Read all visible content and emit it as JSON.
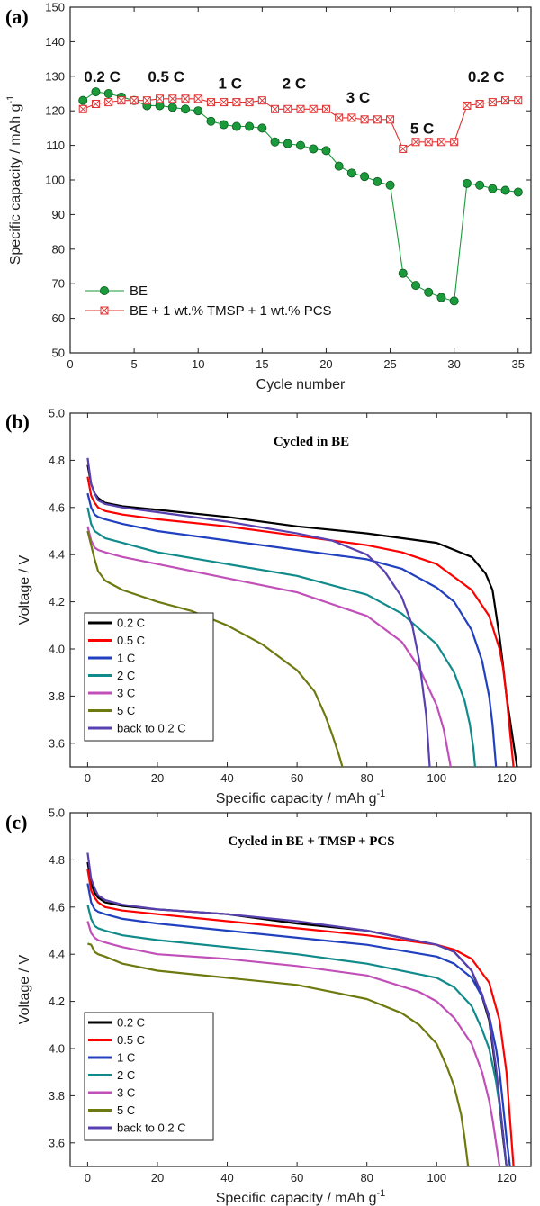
{
  "chart_data": [
    {
      "panel": "(a)",
      "type": "line",
      "xlabel": "Cycle number",
      "ylabel": "Specific capacity / mAh g",
      "ylabel_sup": "-1",
      "xlim": [
        0,
        36
      ],
      "ylim": [
        50,
        150
      ],
      "xticks": [
        0,
        5,
        10,
        15,
        20,
        25,
        30,
        35
      ],
      "yticks": [
        50,
        60,
        70,
        80,
        90,
        100,
        110,
        120,
        130,
        140,
        150
      ],
      "rate_labels": [
        {
          "text": "0.2 C",
          "x": 2.5,
          "y": 130
        },
        {
          "text": "0.5 C",
          "x": 7.5,
          "y": 130
        },
        {
          "text": "1 C",
          "x": 12.5,
          "y": 128
        },
        {
          "text": "2 C",
          "x": 17.5,
          "y": 128
        },
        {
          "text": "3 C",
          "x": 22.5,
          "y": 124
        },
        {
          "text": "5 C",
          "x": 27.5,
          "y": 115
        },
        {
          "text": "0.2 C",
          "x": 32.5,
          "y": 130
        }
      ],
      "series": [
        {
          "name": "BE",
          "color": "#1a9a3a",
          "marker": "circle",
          "x": [
            1,
            2,
            3,
            4,
            5,
            6,
            7,
            8,
            9,
            10,
            11,
            12,
            13,
            14,
            15,
            16,
            17,
            18,
            19,
            20,
            21,
            22,
            23,
            24,
            25,
            26,
            27,
            28,
            29,
            30,
            31,
            32,
            33,
            34,
            35
          ],
          "values": [
            123,
            125.5,
            125,
            124,
            123,
            121.5,
            121.5,
            121,
            120.5,
            120,
            117,
            116,
            115.5,
            115.5,
            115,
            111,
            110.5,
            110,
            109,
            108.5,
            104,
            102,
            101,
            99.5,
            98.5,
            73,
            69.5,
            67.5,
            66,
            65,
            99,
            98.5,
            97.5,
            97,
            96.5
          ]
        },
        {
          "name": "BE + 1 wt.% TMSP  +  1 wt.% PCS",
          "color": "#e03030",
          "marker": "square-x",
          "x": [
            1,
            2,
            3,
            4,
            5,
            6,
            7,
            8,
            9,
            10,
            11,
            12,
            13,
            14,
            15,
            16,
            17,
            18,
            19,
            20,
            21,
            22,
            23,
            24,
            25,
            26,
            27,
            28,
            29,
            30,
            31,
            32,
            33,
            34,
            35
          ],
          "values": [
            120.5,
            122,
            122.5,
            123,
            123,
            123,
            123.5,
            123.5,
            123.5,
            123.5,
            122.5,
            122.5,
            122.5,
            122.5,
            123,
            120.5,
            120.5,
            120.5,
            120.5,
            120.5,
            118,
            118,
            117.5,
            117.5,
            117.5,
            109,
            111,
            111,
            111,
            111,
            121.5,
            122,
            122.5,
            123,
            123
          ]
        }
      ]
    },
    {
      "panel": "(b)",
      "type": "line",
      "title": "Cycled in BE",
      "xlabel": "Specific capacity / mAh g",
      "xlabel_sup": "-1",
      "ylabel": "Voltage / V",
      "xlim": [
        -5,
        127
      ],
      "ylim": [
        3.5,
        5.0
      ],
      "xticks": [
        0,
        20,
        40,
        60,
        80,
        100,
        120
      ],
      "yticks": [
        3.6,
        3.8,
        4.0,
        4.2,
        4.4,
        4.6,
        4.8,
        5.0
      ],
      "series": [
        {
          "name": "0.2 C",
          "color": "#000000",
          "x": [
            0,
            1,
            2,
            3,
            5,
            10,
            20,
            40,
            60,
            80,
            100,
            110,
            114,
            116,
            117,
            118,
            119,
            120,
            122,
            123
          ],
          "values": [
            4.78,
            4.7,
            4.66,
            4.64,
            4.62,
            4.605,
            4.59,
            4.56,
            4.52,
            4.49,
            4.45,
            4.39,
            4.32,
            4.25,
            4.15,
            4.05,
            3.93,
            3.8,
            3.6,
            3.5
          ]
        },
        {
          "name": "0.5 C",
          "color": "#ff0000",
          "x": [
            0,
            1,
            2,
            3,
            5,
            10,
            20,
            40,
            60,
            80,
            90,
            100,
            110,
            115,
            118,
            119,
            120,
            121,
            122
          ],
          "values": [
            4.73,
            4.65,
            4.62,
            4.6,
            4.585,
            4.57,
            4.55,
            4.52,
            4.48,
            4.44,
            4.41,
            4.36,
            4.25,
            4.14,
            4.0,
            3.92,
            3.8,
            3.65,
            3.5
          ]
        },
        {
          "name": "1 C",
          "color": "#2040c0",
          "x": [
            0,
            1,
            2,
            3,
            5,
            10,
            20,
            40,
            60,
            80,
            90,
            100,
            105,
            110,
            113,
            115,
            116,
            117
          ],
          "values": [
            4.66,
            4.6,
            4.57,
            4.56,
            4.55,
            4.53,
            4.5,
            4.46,
            4.42,
            4.38,
            4.34,
            4.26,
            4.2,
            4.08,
            3.95,
            3.8,
            3.68,
            3.5
          ]
        },
        {
          "name": "2 C",
          "color": "#108a8a",
          "x": [
            0,
            1,
            2,
            3,
            5,
            10,
            20,
            40,
            60,
            80,
            90,
            100,
            105,
            108,
            109.5,
            110.5,
            111
          ],
          "values": [
            4.6,
            4.53,
            4.5,
            4.49,
            4.47,
            4.45,
            4.41,
            4.36,
            4.31,
            4.23,
            4.15,
            4.02,
            3.9,
            3.78,
            3.68,
            3.58,
            3.5
          ]
        },
        {
          "name": "3 C",
          "color": "#c050b8",
          "x": [
            0,
            1,
            2,
            3,
            5,
            10,
            20,
            40,
            60,
            80,
            90,
            95,
            100,
            102,
            103,
            104
          ],
          "values": [
            4.52,
            4.46,
            4.43,
            4.42,
            4.41,
            4.39,
            4.36,
            4.3,
            4.24,
            4.14,
            4.03,
            3.92,
            3.76,
            3.66,
            3.58,
            3.5
          ]
        },
        {
          "name": "5 C",
          "color": "#6e7a10",
          "x": [
            0,
            1,
            2,
            3,
            5,
            10,
            20,
            30,
            40,
            50,
            60,
            65,
            68,
            70,
            72,
            73
          ],
          "values": [
            4.5,
            4.44,
            4.38,
            4.33,
            4.29,
            4.25,
            4.2,
            4.16,
            4.1,
            4.02,
            3.91,
            3.82,
            3.72,
            3.64,
            3.55,
            3.5
          ]
        },
        {
          "name": "back to 0.2 C",
          "color": "#5840b0",
          "x": [
            0,
            1,
            2,
            3,
            5,
            10,
            20,
            40,
            60,
            70,
            80,
            85,
            90,
            93,
            95,
            97,
            98
          ],
          "values": [
            4.81,
            4.7,
            4.66,
            4.63,
            4.615,
            4.6,
            4.58,
            4.54,
            4.49,
            4.46,
            4.4,
            4.33,
            4.22,
            4.1,
            3.95,
            3.72,
            3.5
          ]
        }
      ]
    },
    {
      "panel": "(c)",
      "type": "line",
      "title": "Cycled in BE + TMSP + PCS",
      "xlabel": "Specific capacity / mAh g",
      "xlabel_sup": "-1",
      "ylabel": "Voltage / V",
      "xlim": [
        -5,
        127
      ],
      "ylim": [
        3.5,
        5.0
      ],
      "xticks": [
        0,
        20,
        40,
        60,
        80,
        100,
        120
      ],
      "yticks": [
        3.6,
        3.8,
        4.0,
        4.2,
        4.4,
        4.6,
        4.8,
        5.0
      ],
      "series": [
        {
          "name": "0.2 C",
          "color": "#000000",
          "x": [
            0,
            1,
            2,
            3,
            5,
            10,
            20,
            40,
            60,
            80,
            100,
            105,
            110,
            113,
            115,
            117,
            118,
            119,
            120
          ],
          "values": [
            4.79,
            4.7,
            4.66,
            4.64,
            4.62,
            4.605,
            4.59,
            4.57,
            4.53,
            4.5,
            4.44,
            4.41,
            4.33,
            4.22,
            4.12,
            3.9,
            3.76,
            3.62,
            3.5
          ]
        },
        {
          "name": "0.5 C",
          "color": "#ff0000",
          "x": [
            0,
            1,
            2,
            3,
            5,
            10,
            20,
            40,
            60,
            80,
            100,
            105,
            110,
            115,
            118,
            120,
            121,
            122
          ],
          "values": [
            4.76,
            4.67,
            4.64,
            4.62,
            4.6,
            4.585,
            4.57,
            4.54,
            4.51,
            4.48,
            4.44,
            4.42,
            4.38,
            4.28,
            4.12,
            3.9,
            3.7,
            3.5
          ]
        },
        {
          "name": "1 C",
          "color": "#2040c0",
          "x": [
            0,
            1,
            2,
            3,
            5,
            10,
            20,
            40,
            60,
            80,
            100,
            105,
            110,
            113,
            115,
            117,
            118,
            119,
            120,
            121
          ],
          "values": [
            4.7,
            4.62,
            4.59,
            4.58,
            4.57,
            4.55,
            4.53,
            4.5,
            4.47,
            4.44,
            4.39,
            4.36,
            4.3,
            4.22,
            4.14,
            4.0,
            3.9,
            3.76,
            3.62,
            3.5
          ]
        },
        {
          "name": "2 C",
          "color": "#108a8a",
          "x": [
            0,
            1,
            2,
            3,
            5,
            10,
            20,
            40,
            60,
            80,
            100,
            105,
            110,
            113,
            115,
            117,
            118,
            119,
            120
          ],
          "values": [
            4.61,
            4.55,
            4.52,
            4.51,
            4.5,
            4.48,
            4.46,
            4.43,
            4.4,
            4.36,
            4.3,
            4.26,
            4.18,
            4.08,
            4.0,
            3.86,
            3.76,
            3.64,
            3.5
          ]
        },
        {
          "name": "3 C",
          "color": "#c050b8",
          "x": [
            0,
            1,
            2,
            3,
            5,
            10,
            20,
            40,
            60,
            80,
            95,
            100,
            105,
            110,
            113,
            115,
            116,
            117,
            118
          ],
          "values": [
            4.54,
            4.49,
            4.47,
            4.46,
            4.45,
            4.43,
            4.4,
            4.38,
            4.35,
            4.31,
            4.24,
            4.2,
            4.13,
            4.02,
            3.9,
            3.78,
            3.7,
            3.6,
            3.5
          ]
        },
        {
          "name": "5 C",
          "color": "#6e7a10",
          "x": [
            0,
            1,
            2,
            3,
            5,
            10,
            20,
            40,
            60,
            80,
            90,
            95,
            100,
            103,
            105,
            107,
            108,
            109
          ],
          "values": [
            4.445,
            4.44,
            4.41,
            4.4,
            4.39,
            4.36,
            4.33,
            4.3,
            4.27,
            4.21,
            4.15,
            4.1,
            4.02,
            3.92,
            3.84,
            3.72,
            3.62,
            3.5
          ]
        },
        {
          "name": "back to 0.2 C",
          "color": "#5840b0",
          "x": [
            0,
            1,
            2,
            3,
            5,
            10,
            20,
            40,
            60,
            80,
            100,
            105,
            110,
            113,
            115,
            117,
            118,
            119,
            120
          ],
          "values": [
            4.83,
            4.72,
            4.68,
            4.65,
            4.63,
            4.61,
            4.59,
            4.57,
            4.54,
            4.5,
            4.44,
            4.41,
            4.33,
            4.23,
            4.13,
            3.92,
            3.78,
            3.64,
            3.5
          ]
        }
      ]
    }
  ]
}
